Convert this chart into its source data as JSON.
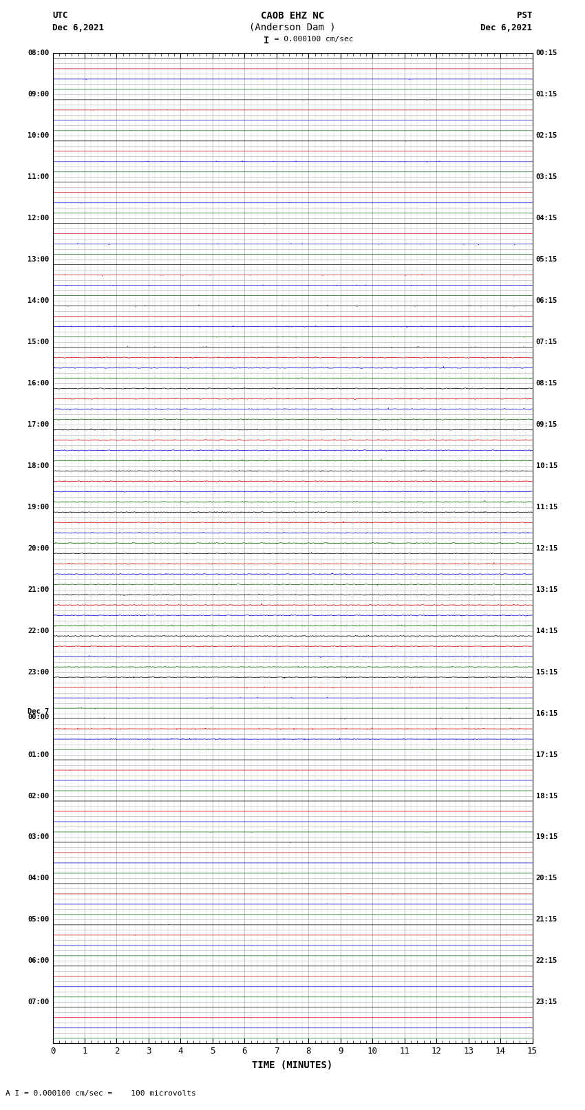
{
  "title_line1": "CAOB EHZ NC",
  "title_line2": "(Anderson Dam )",
  "scale_text": " = 0.000100 cm/sec",
  "left_label": "UTC",
  "left_date": "Dec 6,2021",
  "right_label": "PST",
  "right_date": "Dec 6,2021",
  "xlabel": "TIME (MINUTES)",
  "footer_text": "A I = 0.000100 cm/sec =    100 microvolts",
  "xmin": 0,
  "xmax": 15,
  "figwidth": 8.5,
  "figheight": 16.13,
  "dpi": 100,
  "background_color": "#ffffff",
  "grid_color": "#aaaaaa",
  "trace_color_black": "#000000",
  "trace_color_blue": "#0000cc",
  "trace_color_green": "#006600",
  "trace_color_red": "#cc0000",
  "rows": [
    {
      "utc": "08:00",
      "pst": "00:15",
      "color": "black",
      "activity": 0
    },
    {
      "utc": "",
      "pst": "",
      "color": "red",
      "activity": 0
    },
    {
      "utc": "",
      "pst": "",
      "color": "blue",
      "activity": 1
    },
    {
      "utc": "",
      "pst": "",
      "color": "green",
      "activity": 0
    },
    {
      "utc": "09:00",
      "pst": "01:15",
      "color": "black",
      "activity": 0
    },
    {
      "utc": "",
      "pst": "",
      "color": "red",
      "activity": 0
    },
    {
      "utc": "",
      "pst": "",
      "color": "blue",
      "activity": 0
    },
    {
      "utc": "",
      "pst": "",
      "color": "green",
      "activity": 0
    },
    {
      "utc": "10:00",
      "pst": "02:15",
      "color": "black",
      "activity": 0
    },
    {
      "utc": "",
      "pst": "",
      "color": "red",
      "activity": 0
    },
    {
      "utc": "",
      "pst": "",
      "color": "blue",
      "activity": 1
    },
    {
      "utc": "",
      "pst": "",
      "color": "green",
      "activity": 0
    },
    {
      "utc": "11:00",
      "pst": "03:15",
      "color": "black",
      "activity": 0
    },
    {
      "utc": "",
      "pst": "",
      "color": "red",
      "activity": 0
    },
    {
      "utc": "",
      "pst": "",
      "color": "blue",
      "activity": 0
    },
    {
      "utc": "",
      "pst": "",
      "color": "green",
      "activity": 0
    },
    {
      "utc": "12:00",
      "pst": "04:15",
      "color": "black",
      "activity": 0
    },
    {
      "utc": "",
      "pst": "",
      "color": "red",
      "activity": 0
    },
    {
      "utc": "",
      "pst": "",
      "color": "blue",
      "activity": 1
    },
    {
      "utc": "",
      "pst": "",
      "color": "green",
      "activity": 0
    },
    {
      "utc": "13:00",
      "pst": "05:15",
      "color": "black",
      "activity": 0
    },
    {
      "utc": "",
      "pst": "",
      "color": "red",
      "activity": 1
    },
    {
      "utc": "",
      "pst": "",
      "color": "blue",
      "activity": 1
    },
    {
      "utc": "",
      "pst": "",
      "color": "green",
      "activity": 0
    },
    {
      "utc": "14:00",
      "pst": "06:15",
      "color": "black",
      "activity": 1
    },
    {
      "utc": "",
      "pst": "",
      "color": "red",
      "activity": 1
    },
    {
      "utc": "",
      "pst": "",
      "color": "blue",
      "activity": 2
    },
    {
      "utc": "",
      "pst": "",
      "color": "green",
      "activity": 1
    },
    {
      "utc": "15:00",
      "pst": "07:15",
      "color": "black",
      "activity": 1
    },
    {
      "utc": "",
      "pst": "",
      "color": "red",
      "activity": 3
    },
    {
      "utc": "",
      "pst": "",
      "color": "blue",
      "activity": 3
    },
    {
      "utc": "",
      "pst": "",
      "color": "green",
      "activity": 3
    },
    {
      "utc": "16:00",
      "pst": "08:15",
      "color": "black",
      "activity": 3
    },
    {
      "utc": "",
      "pst": "",
      "color": "red",
      "activity": 3
    },
    {
      "utc": "",
      "pst": "",
      "color": "blue",
      "activity": 3
    },
    {
      "utc": "",
      "pst": "",
      "color": "green",
      "activity": 3
    },
    {
      "utc": "17:00",
      "pst": "09:15",
      "color": "black",
      "activity": 3
    },
    {
      "utc": "",
      "pst": "",
      "color": "red",
      "activity": 3
    },
    {
      "utc": "",
      "pst": "",
      "color": "blue",
      "activity": 3
    },
    {
      "utc": "",
      "pst": "",
      "color": "green",
      "activity": 3
    },
    {
      "utc": "18:00",
      "pst": "10:15",
      "color": "black",
      "activity": 3
    },
    {
      "utc": "",
      "pst": "",
      "color": "red",
      "activity": 3
    },
    {
      "utc": "",
      "pst": "",
      "color": "blue",
      "activity": 3
    },
    {
      "utc": "",
      "pst": "",
      "color": "green",
      "activity": 3
    },
    {
      "utc": "19:00",
      "pst": "11:15",
      "color": "black",
      "activity": 3
    },
    {
      "utc": "",
      "pst": "",
      "color": "red",
      "activity": 3
    },
    {
      "utc": "",
      "pst": "",
      "color": "blue",
      "activity": 3
    },
    {
      "utc": "",
      "pst": "",
      "color": "green",
      "activity": 3
    },
    {
      "utc": "20:00",
      "pst": "12:15",
      "color": "black",
      "activity": 3
    },
    {
      "utc": "",
      "pst": "",
      "color": "red",
      "activity": 3
    },
    {
      "utc": "",
      "pst": "",
      "color": "blue",
      "activity": 3
    },
    {
      "utc": "",
      "pst": "",
      "color": "green",
      "activity": 3
    },
    {
      "utc": "21:00",
      "pst": "13:15",
      "color": "black",
      "activity": 3
    },
    {
      "utc": "",
      "pst": "",
      "color": "red",
      "activity": 3
    },
    {
      "utc": "",
      "pst": "",
      "color": "blue",
      "activity": 3
    },
    {
      "utc": "",
      "pst": "",
      "color": "green",
      "activity": 3
    },
    {
      "utc": "22:00",
      "pst": "14:15",
      "color": "black",
      "activity": 3
    },
    {
      "utc": "",
      "pst": "",
      "color": "red",
      "activity": 3
    },
    {
      "utc": "",
      "pst": "",
      "color": "blue",
      "activity": 3
    },
    {
      "utc": "",
      "pst": "",
      "color": "green",
      "activity": 3
    },
    {
      "utc": "23:00",
      "pst": "15:15",
      "color": "black",
      "activity": 3
    },
    {
      "utc": "",
      "pst": "",
      "color": "red",
      "activity": 1
    },
    {
      "utc": "",
      "pst": "",
      "color": "blue",
      "activity": 1
    },
    {
      "utc": "",
      "pst": "",
      "color": "green",
      "activity": 1
    },
    {
      "utc": "Dec 7\n00:00",
      "pst": "16:15",
      "color": "black",
      "activity": 1
    },
    {
      "utc": "",
      "pst": "",
      "color": "red",
      "activity": 2
    },
    {
      "utc": "",
      "pst": "",
      "color": "blue",
      "activity": 2
    },
    {
      "utc": "",
      "pst": "",
      "color": "green",
      "activity": 1
    },
    {
      "utc": "01:00",
      "pst": "17:15",
      "color": "black",
      "activity": 0
    },
    {
      "utc": "",
      "pst": "",
      "color": "red",
      "activity": 0
    },
    {
      "utc": "",
      "pst": "",
      "color": "blue",
      "activity": 0
    },
    {
      "utc": "",
      "pst": "",
      "color": "green",
      "activity": 0
    },
    {
      "utc": "02:00",
      "pst": "18:15",
      "color": "black",
      "activity": 0
    },
    {
      "utc": "",
      "pst": "",
      "color": "red",
      "activity": 0
    },
    {
      "utc": "",
      "pst": "",
      "color": "blue",
      "activity": 0
    },
    {
      "utc": "",
      "pst": "",
      "color": "green",
      "activity": 0
    },
    {
      "utc": "03:00",
      "pst": "19:15",
      "color": "black",
      "activity": 0
    },
    {
      "utc": "",
      "pst": "",
      "color": "red",
      "activity": 0
    },
    {
      "utc": "",
      "pst": "",
      "color": "blue",
      "activity": 0
    },
    {
      "utc": "",
      "pst": "",
      "color": "green",
      "activity": 0
    },
    {
      "utc": "04:00",
      "pst": "20:15",
      "color": "black",
      "activity": 0
    },
    {
      "utc": "",
      "pst": "",
      "color": "red",
      "activity": 0
    },
    {
      "utc": "",
      "pst": "",
      "color": "blue",
      "activity": 0
    },
    {
      "utc": "",
      "pst": "",
      "color": "green",
      "activity": 0
    },
    {
      "utc": "05:00",
      "pst": "21:15",
      "color": "black",
      "activity": 0
    },
    {
      "utc": "",
      "pst": "",
      "color": "red",
      "activity": 0
    },
    {
      "utc": "",
      "pst": "",
      "color": "blue",
      "activity": 0
    },
    {
      "utc": "",
      "pst": "",
      "color": "green",
      "activity": 0
    },
    {
      "utc": "06:00",
      "pst": "22:15",
      "color": "black",
      "activity": 0
    },
    {
      "utc": "",
      "pst": "",
      "color": "red",
      "activity": 0
    },
    {
      "utc": "",
      "pst": "",
      "color": "blue",
      "activity": 0
    },
    {
      "utc": "",
      "pst": "",
      "color": "green",
      "activity": 0
    },
    {
      "utc": "07:00",
      "pst": "23:15",
      "color": "black",
      "activity": 0
    },
    {
      "utc": "",
      "pst": "",
      "color": "red",
      "activity": 0
    },
    {
      "utc": "",
      "pst": "",
      "color": "blue",
      "activity": 0
    },
    {
      "utc": "",
      "pst": "",
      "color": "green",
      "activity": 0
    }
  ]
}
